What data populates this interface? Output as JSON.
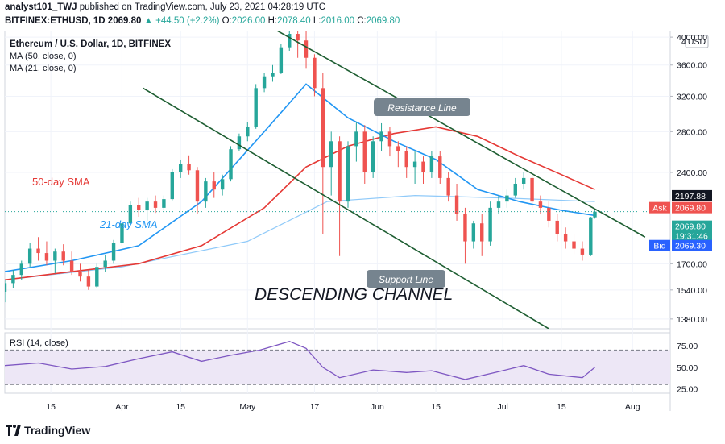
{
  "header": {
    "publisher": "analyst101_TWJ",
    "published_text": "published on TradingView.com, July 23, 2021 04:28:19 UTC",
    "symbol": "BITFINEX:ETHUSD, 1D",
    "price": "2069.80",
    "change_arrow": "▲",
    "change": "+44.50 (+2.2%)",
    "ohlc": [
      {
        "label": "O:",
        "value": "2026.00"
      },
      {
        "label": "H:",
        "value": "2078.40"
      },
      {
        "label": "L:",
        "value": "2016.00"
      },
      {
        "label": "C:",
        "value": "2069.80"
      }
    ]
  },
  "legend": {
    "title": "Ethereum / U.S. Dollar, 1D, BITFINEX",
    "ma1": "MA (50, close, 0)",
    "ma2": "MA (21, close, 0)"
  },
  "annotations": {
    "sma50": "50-day SMA",
    "sma21": "21-day SMA",
    "resistance": "Resistance Line",
    "support": "Support Line",
    "channel": "DESCENDING CHANNEL"
  },
  "price_axis": {
    "currency": "USD",
    "top_partial": "4",
    "ticks": [
      "4000.00",
      "3600.00",
      "3200.00",
      "2800.00",
      "2400.00",
      "1700.00",
      "1540.00",
      "1380.00"
    ],
    "tags": [
      {
        "label": "",
        "value": "2197.88",
        "color": "#131722"
      },
      {
        "label": "Ask",
        "value": "2069.80",
        "color": "#ef5350"
      },
      {
        "label": "",
        "value": "2069.80",
        "value2": "19:31:46",
        "color": "#26a69a"
      },
      {
        "label": "Bid",
        "value": "2069.30",
        "color": "#2962ff"
      }
    ]
  },
  "rsi": {
    "label": "RSI (14, close)",
    "ticks": [
      "75.00",
      "50.00",
      "25.00"
    ]
  },
  "time_axis": [
    "15",
    "Apr",
    "15",
    "May",
    "17",
    "Jun",
    "15",
    "Jul",
    "15",
    "Aug"
  ],
  "colors": {
    "up": "#26a69a",
    "down": "#ef5350",
    "ma50": "#e53935",
    "ma21": "#2196f3",
    "ma200": "#90caf9",
    "channel": "#1e5e32",
    "rsi": "#7e57c2",
    "rsi_band": "#ede7f6"
  },
  "brand": "TradingView",
  "chart_data": {
    "type": "candlestick",
    "title": "Ethereum / U.S. Dollar, 1D, BITFINEX",
    "y_scale": "log",
    "ylim": [
      1330,
      4100
    ],
    "x_range": [
      "2021-03-04",
      "2021-08-10"
    ],
    "candles": [
      [
        "2021-03-04",
        1530,
        1600,
        1470,
        1580
      ],
      [
        "2021-03-06",
        1580,
        1660,
        1550,
        1630
      ],
      [
        "2021-03-08",
        1630,
        1720,
        1600,
        1700
      ],
      [
        "2021-03-10",
        1700,
        1840,
        1680,
        1800
      ],
      [
        "2021-03-12",
        1800,
        1880,
        1720,
        1770
      ],
      [
        "2021-03-14",
        1770,
        1850,
        1690,
        1720
      ],
      [
        "2021-03-16",
        1720,
        1800,
        1640,
        1780
      ],
      [
        "2021-03-18",
        1780,
        1830,
        1690,
        1720
      ],
      [
        "2021-03-20",
        1720,
        1780,
        1630,
        1650
      ],
      [
        "2021-03-22",
        1650,
        1700,
        1590,
        1620
      ],
      [
        "2021-03-24",
        1620,
        1660,
        1540,
        1560
      ],
      [
        "2021-03-26",
        1560,
        1700,
        1550,
        1680
      ],
      [
        "2021-03-28",
        1680,
        1760,
        1650,
        1720
      ],
      [
        "2021-03-30",
        1720,
        1860,
        1700,
        1840
      ],
      [
        "2021-04-01",
        1840,
        2000,
        1820,
        1980
      ],
      [
        "2021-04-03",
        1980,
        2150,
        1960,
        2120
      ],
      [
        "2021-04-05",
        2120,
        2180,
        2030,
        2080
      ],
      [
        "2021-04-07",
        2080,
        2180,
        2000,
        2150
      ],
      [
        "2021-04-09",
        2150,
        2200,
        2060,
        2100
      ],
      [
        "2021-04-11",
        2100,
        2200,
        2080,
        2170
      ],
      [
        "2021-04-13",
        2170,
        2430,
        2160,
        2400
      ],
      [
        "2021-04-15",
        2400,
        2520,
        2350,
        2480
      ],
      [
        "2021-04-17",
        2480,
        2560,
        2380,
        2420
      ],
      [
        "2021-04-19",
        2420,
        2450,
        2050,
        2150
      ],
      [
        "2021-04-21",
        2150,
        2350,
        2100,
        2320
      ],
      [
        "2021-04-23",
        2320,
        2400,
        2180,
        2250
      ],
      [
        "2021-04-25",
        2250,
        2380,
        2200,
        2340
      ],
      [
        "2021-04-27",
        2340,
        2650,
        2320,
        2620
      ],
      [
        "2021-04-29",
        2620,
        2780,
        2600,
        2750
      ],
      [
        "2021-05-01",
        2750,
        2900,
        2700,
        2850
      ],
      [
        "2021-05-03",
        2850,
        3350,
        2830,
        3300
      ],
      [
        "2021-05-05",
        3300,
        3500,
        3250,
        3450
      ],
      [
        "2021-05-07",
        3450,
        3600,
        3380,
        3500
      ],
      [
        "2021-05-09",
        3500,
        3900,
        3480,
        3850
      ],
      [
        "2021-05-11",
        3850,
        4200,
        3800,
        4050
      ],
      [
        "2021-05-13",
        4050,
        4150,
        3700,
        3950
      ],
      [
        "2021-05-15",
        3950,
        4100,
        3550,
        3700
      ],
      [
        "2021-05-17",
        3700,
        3750,
        3200,
        3300
      ],
      [
        "2021-05-19",
        3300,
        3500,
        1900,
        2450
      ],
      [
        "2021-05-21",
        2450,
        2800,
        2200,
        2700
      ],
      [
        "2021-05-23",
        2700,
        2750,
        1750,
        2150
      ],
      [
        "2021-05-25",
        2150,
        2700,
        2100,
        2650
      ],
      [
        "2021-05-27",
        2650,
        2900,
        2500,
        2800
      ],
      [
        "2021-05-29",
        2800,
        2870,
        2300,
        2400
      ],
      [
        "2021-05-31",
        2400,
        2750,
        2350,
        2700
      ],
      [
        "2021-06-02",
        2700,
        2890,
        2600,
        2800
      ],
      [
        "2021-06-04",
        2800,
        2850,
        2550,
        2650
      ],
      [
        "2021-06-06",
        2650,
        2700,
        2450,
        2600
      ],
      [
        "2021-06-08",
        2600,
        2650,
        2350,
        2450
      ],
      [
        "2021-06-10",
        2450,
        2600,
        2300,
        2500
      ],
      [
        "2021-06-12",
        2500,
        2550,
        2300,
        2400
      ],
      [
        "2021-06-14",
        2400,
        2600,
        2350,
        2550
      ],
      [
        "2021-06-16",
        2550,
        2600,
        2300,
        2350
      ],
      [
        "2021-06-18",
        2350,
        2400,
        2150,
        2200
      ],
      [
        "2021-06-20",
        2200,
        2300,
        2000,
        2050
      ],
      [
        "2021-06-22",
        2050,
        2100,
        1700,
        1850
      ],
      [
        "2021-06-24",
        1850,
        2000,
        1800,
        1980
      ],
      [
        "2021-06-26",
        1980,
        2050,
        1750,
        1850
      ],
      [
        "2021-06-28",
        1850,
        2150,
        1820,
        2100
      ],
      [
        "2021-06-30",
        2100,
        2200,
        2050,
        2150
      ],
      [
        "2021-07-02",
        2150,
        2250,
        2100,
        2200
      ],
      [
        "2021-07-04",
        2200,
        2350,
        2180,
        2300
      ],
      [
        "2021-07-06",
        2300,
        2400,
        2250,
        2350
      ],
      [
        "2021-07-08",
        2350,
        2380,
        2100,
        2150
      ],
      [
        "2021-07-10",
        2150,
        2200,
        2050,
        2100
      ],
      [
        "2021-07-12",
        2100,
        2150,
        1950,
        2000
      ],
      [
        "2021-07-14",
        2000,
        2050,
        1850,
        1900
      ],
      [
        "2021-07-16",
        1900,
        1950,
        1800,
        1850
      ],
      [
        "2021-07-18",
        1850,
        1900,
        1760,
        1800
      ],
      [
        "2021-07-20",
        1800,
        1850,
        1720,
        1760
      ],
      [
        "2021-07-22",
        1760,
        2030,
        1750,
        2026
      ],
      [
        "2021-07-23",
        2026,
        2078.4,
        2016,
        2069.8
      ]
    ],
    "ma50": [
      [
        "2021-03-04",
        1600
      ],
      [
        "2021-03-20",
        1650
      ],
      [
        "2021-04-05",
        1700
      ],
      [
        "2021-04-20",
        1820
      ],
      [
        "2021-05-05",
        2100
      ],
      [
        "2021-05-15",
        2450
      ],
      [
        "2021-05-25",
        2650
      ],
      [
        "2021-06-05",
        2780
      ],
      [
        "2021-06-15",
        2850
      ],
      [
        "2021-06-25",
        2750
      ],
      [
        "2021-07-05",
        2550
      ],
      [
        "2021-07-15",
        2380
      ],
      [
        "2021-07-23",
        2250
      ]
    ],
    "ma21": [
      [
        "2021-03-04",
        1650
      ],
      [
        "2021-03-20",
        1720
      ],
      [
        "2021-04-05",
        1820
      ],
      [
        "2021-04-20",
        2150
      ],
      [
        "2021-05-05",
        2800
      ],
      [
        "2021-05-15",
        3350
      ],
      [
        "2021-05-25",
        2950
      ],
      [
        "2021-06-05",
        2700
      ],
      [
        "2021-06-15",
        2520
      ],
      [
        "2021-06-25",
        2250
      ],
      [
        "2021-07-05",
        2150
      ],
      [
        "2021-07-15",
        2080
      ],
      [
        "2021-07-23",
        2040
      ]
    ],
    "ma200": [
      [
        "2021-03-04",
        1600
      ],
      [
        "2021-04-01",
        1680
      ],
      [
        "2021-05-01",
        1850
      ],
      [
        "2021-05-20",
        2150
      ],
      [
        "2021-06-10",
        2200
      ],
      [
        "2021-07-01",
        2180
      ],
      [
        "2021-07-23",
        2150
      ]
    ],
    "resistance_line": [
      [
        "2021-05-04",
        4250
      ],
      [
        "2021-08-04",
        1880
      ]
    ],
    "support_line": [
      [
        "2021-04-06",
        3300
      ],
      [
        "2021-07-12",
        1330
      ]
    ],
    "rsi": {
      "ylim": [
        20,
        90
      ],
      "levels": [
        70,
        30
      ],
      "values": [
        [
          "2021-03-04",
          52
        ],
        [
          "2021-03-12",
          55
        ],
        [
          "2021-03-20",
          48
        ],
        [
          "2021-03-28",
          51
        ],
        [
          "2021-04-05",
          60
        ],
        [
          "2021-04-13",
          68
        ],
        [
          "2021-04-20",
          57
        ],
        [
          "2021-04-27",
          64
        ],
        [
          "2021-05-04",
          70
        ],
        [
          "2021-05-11",
          80
        ],
        [
          "2021-05-15",
          72
        ],
        [
          "2021-05-19",
          50
        ],
        [
          "2021-05-23",
          38
        ],
        [
          "2021-05-31",
          47
        ],
        [
          "2021-06-08",
          44
        ],
        [
          "2021-06-14",
          46
        ],
        [
          "2021-06-22",
          36
        ],
        [
          "2021-06-30",
          45
        ],
        [
          "2021-07-06",
          52
        ],
        [
          "2021-07-12",
          42
        ],
        [
          "2021-07-20",
          38
        ],
        [
          "2021-07-23",
          50
        ]
      ]
    }
  }
}
